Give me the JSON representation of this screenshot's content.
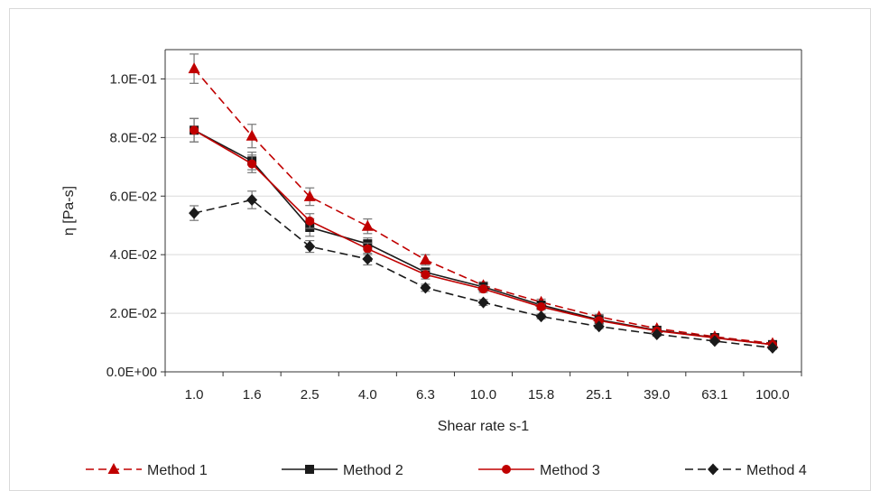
{
  "chart_data": {
    "type": "line",
    "xlabel": "Shear rate s-1",
    "ylabel": "η [Pa-s]",
    "categories": [
      "1.0",
      "1.6",
      "2.5",
      "4.0",
      "6.3",
      "10.0",
      "15.8",
      "25.1",
      "39.0",
      "63.1",
      "100.0"
    ],
    "y_ticks": [
      "0.0E+00",
      "2.0E-02",
      "4.0E-02",
      "6.0E-02",
      "8.0E-02",
      "1.0E-01"
    ],
    "ylim": [
      0,
      0.11
    ],
    "grid": "horizontal",
    "legend_position": "bottom",
    "series": [
      {
        "name": "Method 1",
        "color": "#c00000",
        "dash": "dashed",
        "marker": "triangle",
        "values": [
          0.1035,
          0.0805,
          0.0598,
          0.0497,
          0.0382,
          0.0295,
          0.0238,
          0.0188,
          0.0148,
          0.012,
          0.0097
        ],
        "errors": [
          0.005,
          0.004,
          0.003,
          0.0025,
          0.0018,
          0.0012,
          0.001,
          0.0008,
          0.0007,
          0.0006,
          0.0005
        ]
      },
      {
        "name": "Method 2",
        "color": "#1a1a1a",
        "dash": "solid",
        "marker": "square",
        "values": [
          0.0825,
          0.072,
          0.0493,
          0.0437,
          0.034,
          0.029,
          0.0228,
          0.0178,
          0.0142,
          0.0117,
          0.0093
        ],
        "errors": [
          0.004,
          0.003,
          0.003,
          0.002,
          0.0015,
          0.0012,
          0.001,
          0.0008,
          0.0007,
          0.0006,
          0.0005
        ]
      },
      {
        "name": "Method 3",
        "color": "#c00000",
        "dash": "solid",
        "marker": "circle",
        "values": [
          0.0825,
          0.071,
          0.0515,
          0.042,
          0.0332,
          0.0283,
          0.0222,
          0.0175,
          0.014,
          0.0116,
          0.0093
        ],
        "errors": [
          0.004,
          0.003,
          0.0025,
          0.002,
          0.0015,
          0.0012,
          0.001,
          0.0008,
          0.0007,
          0.0006,
          0.0005
        ]
      },
      {
        "name": "Method 4",
        "color": "#1a1a1a",
        "dash": "dashed",
        "marker": "diamond",
        "values": [
          0.0542,
          0.0587,
          0.0428,
          0.0385,
          0.0287,
          0.0237,
          0.0189,
          0.0155,
          0.0128,
          0.0105,
          0.0082
        ],
        "errors": [
          0.0025,
          0.003,
          0.002,
          0.002,
          0.0012,
          0.001,
          0.0008,
          0.0007,
          0.0006,
          0.0005,
          0.0005
        ]
      }
    ]
  }
}
